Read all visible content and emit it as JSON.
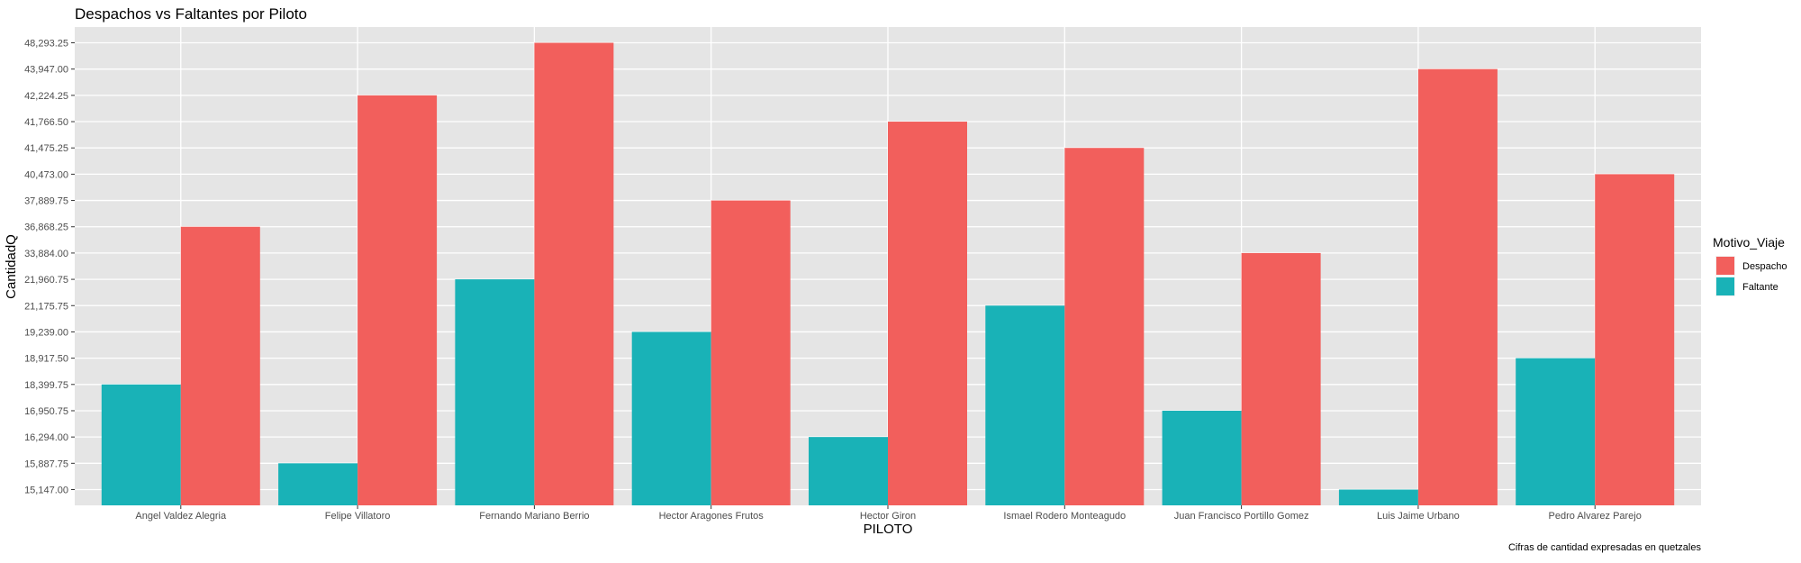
{
  "chart_data": {
    "type": "bar",
    "title": "Despachos vs Faltantes por Piloto",
    "xlabel": "PILOTO",
    "ylabel": "CantidadQ",
    "caption": "Cifras de cantidad expresadas en quetzales",
    "y_axis_note": "discrete (categorical) y axis: tick labels are the bar values, sorted ascending",
    "y_ticks": [
      "15,147.00",
      "15,887.75",
      "16,294.00",
      "16,950.75",
      "18,399.75",
      "18,917.50",
      "19,239.00",
      "21,175.75",
      "21,960.75",
      "33,884.00",
      "36,868.25",
      "37,889.75",
      "40,473.00",
      "41,475.25",
      "41,766.50",
      "42,224.25",
      "43,947.00",
      "48,293.25"
    ],
    "categories": [
      "Angel Valdez Alegria",
      "Felipe Villatoro",
      "Fernando Mariano Berrio",
      "Hector Aragones Frutos",
      "Hector Giron",
      "Ismael Rodero Monteagudo",
      "Juan Francisco Portillo Gomez",
      "Luis Jaime Urbano",
      "Pedro Alvarez Parejo"
    ],
    "legend": {
      "title": "Motivo_Viaje",
      "position": "right"
    },
    "grid": true,
    "series": [
      {
        "name": "Faltante",
        "color": "#19b2b7",
        "values": [
          18399.75,
          15887.75,
          21960.75,
          19239.0,
          16294.0,
          21175.75,
          16950.75,
          15147.0,
          18917.5
        ]
      },
      {
        "name": "Despacho",
        "color": "#f25f5c",
        "values": [
          36868.25,
          42224.25,
          48293.25,
          37889.75,
          41766.5,
          41475.25,
          33884.0,
          43947.0,
          40473.0
        ]
      }
    ],
    "legend_order": [
      "Despacho",
      "Faltante"
    ]
  }
}
